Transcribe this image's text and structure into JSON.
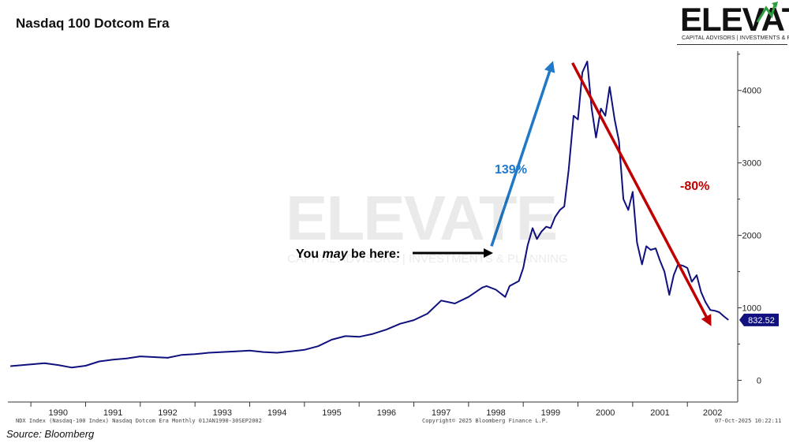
{
  "header": {
    "title": "Nasdaq 100 Dotcom Era"
  },
  "logo": {
    "word": "ELEVATE",
    "tagline": "CAPITAL ADVISORS | INVESTMENTS & PLANNING",
    "arrow_color": "#2e9d3f"
  },
  "footer": {
    "source": "Source: Bloomberg",
    "left": "NDX Index (Nasdaq-100 Index) Nasdaq Dotcom Era Monthly 01JAN1990-30SEP2002",
    "center": "Copyright© 2025 Bloomberg Finance L.P.",
    "right": "07-Oct-2025 10:22:11"
  },
  "colors": {
    "series": "#10107e",
    "up_arrow": "#1f78c8",
    "down_arrow": "#c00000",
    "label_bg": "#10107e"
  },
  "chart_data": {
    "type": "line",
    "title": "Nasdaq 100 Dotcom Era",
    "x_unit": "year",
    "xlim": [
      1989.58,
      2002.92
    ],
    "ylim": [
      -300,
      4650
    ],
    "y_axis_side": "right",
    "y_ticks": [
      0,
      1000,
      2000,
      3000,
      4000
    ],
    "x_ticks": [
      "1990",
      "1991",
      "1992",
      "1993",
      "1994",
      "1995",
      "1996",
      "1997",
      "1998",
      "1999",
      "2000",
      "2001",
      "2002"
    ],
    "grid": false,
    "last_value_label": "832.52",
    "series": [
      {
        "x": [
          1989.625,
          1990.0,
          1990.25,
          1990.5,
          1990.75,
          1991.0,
          1991.25,
          1991.5,
          1991.75,
          1992.0,
          1992.25,
          1992.5,
          1992.75,
          1993.0,
          1993.25,
          1993.5,
          1993.75,
          1994.0,
          1994.25,
          1994.5,
          1994.75,
          1995.0,
          1995.25,
          1995.5,
          1995.75,
          1996.0,
          1996.25,
          1996.5,
          1996.75,
          1997.0,
          1997.25,
          1997.5,
          1997.75,
          1998.0,
          1998.25,
          1998.33,
          1998.5,
          1998.67,
          1998.75,
          1998.92,
          1999.0,
          1999.08,
          1999.17,
          1999.25,
          1999.33,
          1999.42,
          1999.5,
          1999.58,
          1999.67,
          1999.75,
          1999.83,
          1999.92,
          2000.0,
          2000.08,
          2000.17,
          2000.25,
          2000.33,
          2000.42,
          2000.5,
          2000.58,
          2000.67,
          2000.75,
          2000.83,
          2000.92,
          2001.0,
          2001.08,
          2001.17,
          2001.25,
          2001.33,
          2001.42,
          2001.5,
          2001.58,
          2001.67,
          2001.75,
          2001.83,
          2001.92,
          2002.0,
          2002.08,
          2002.17,
          2002.25,
          2002.33,
          2002.42,
          2002.5,
          2002.58,
          2002.67,
          2002.75
        ],
        "y": [
          195,
          220,
          235,
          210,
          175,
          200,
          260,
          285,
          300,
          330,
          320,
          310,
          350,
          360,
          380,
          390,
          400,
          410,
          390,
          380,
          400,
          420,
          470,
          560,
          610,
          600,
          640,
          700,
          780,
          830,
          920,
          1100,
          1060,
          1150,
          1280,
          1300,
          1250,
          1150,
          1300,
          1370,
          1550,
          1860,
          2100,
          1950,
          2050,
          2120,
          2100,
          2250,
          2350,
          2400,
          2900,
          3650,
          3600,
          4250,
          4400,
          3750,
          3350,
          3750,
          3650,
          4050,
          3600,
          3300,
          2500,
          2350,
          2600,
          1900,
          1600,
          1850,
          1800,
          1820,
          1650,
          1500,
          1180,
          1450,
          1600,
          1580,
          1550,
          1360,
          1450,
          1220,
          1080,
          970,
          960,
          940,
          880,
          832.52
        ]
      }
    ],
    "annotations": [
      {
        "text": "139%",
        "color": "up_arrow"
      },
      {
        "text": "-80%",
        "color": "down_arrow"
      },
      {
        "text": "You may be here:"
      }
    ]
  }
}
